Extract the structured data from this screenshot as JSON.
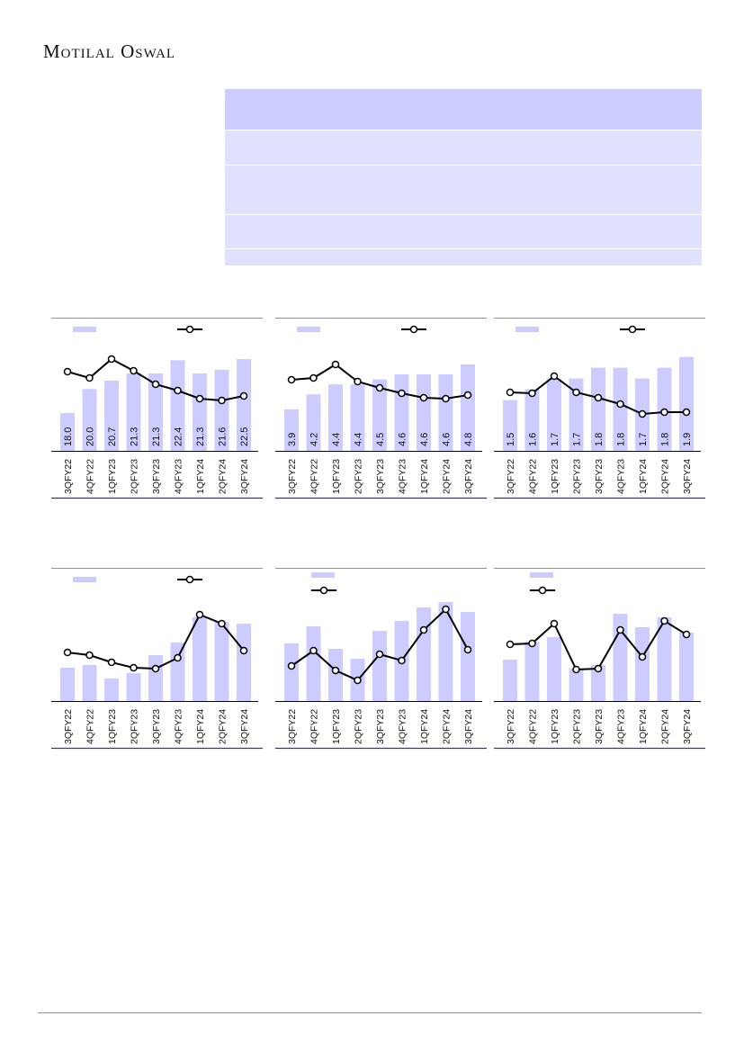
{
  "header": {
    "brand": "Motilal Oswal"
  },
  "colors": {
    "bar": "#ccccff",
    "line": "#000000",
    "rule": "#8a8ad0",
    "table_header": "#ccccff",
    "table_row": "#e0e0ff"
  },
  "chart_data": [
    {
      "type": "bar",
      "categories": [
        "3QFY22",
        "4QFY22",
        "1QFY23",
        "2QFY23",
        "3QFY23",
        "4QFY23",
        "1QFY24",
        "2QFY24",
        "3QFY24"
      ],
      "bar_values": [
        18.0,
        20.0,
        20.7,
        21.3,
        21.3,
        22.4,
        21.3,
        21.6,
        22.5
      ],
      "bar_labels": [
        "18.0",
        "20.0",
        "20.7",
        "21.3",
        "21.3",
        "22.4",
        "21.3",
        "21.6",
        "22.5"
      ],
      "bar_ylim": [
        14.85,
        23.85
      ],
      "line_values": [
        88,
        81,
        102,
        89,
        74,
        67,
        58,
        56,
        61
      ],
      "line_ylim": [
        0,
        120
      ],
      "legend": "top-stacked-row"
    },
    {
      "type": "bar",
      "categories": [
        "3QFY22",
        "4QFY22",
        "1QFY23",
        "2QFY23",
        "3QFY23",
        "4QFY23",
        "1QFY24",
        "2QFY24",
        "3QFY24"
      ],
      "bar_values": [
        3.9,
        4.2,
        4.4,
        4.4,
        4.5,
        4.6,
        4.6,
        4.6,
        4.8
      ],
      "bar_labels": [
        "3.9",
        "4.2",
        "4.4",
        "4.4",
        "4.5",
        "4.6",
        "4.6",
        "4.6",
        "4.8"
      ],
      "bar_ylim": [
        3.07,
        5.23
      ],
      "line_values": [
        79,
        81,
        96,
        77,
        70,
        64,
        59,
        58,
        62
      ],
      "line_ylim": [
        0,
        120
      ],
      "legend": "top-row"
    },
    {
      "type": "bar",
      "categories": [
        "3QFY22",
        "4QFY22",
        "1QFY23",
        "2QFY23",
        "3QFY23",
        "4QFY23",
        "1QFY24",
        "2QFY24",
        "3QFY24"
      ],
      "bar_values": [
        1.5,
        1.6,
        1.7,
        1.7,
        1.8,
        1.8,
        1.7,
        1.8,
        1.9
      ],
      "bar_labels": [
        "1.5",
        "1.6",
        "1.7",
        "1.7",
        "1.8",
        "1.8",
        "1.7",
        "1.8",
        "1.9"
      ],
      "bar_ylim": [
        1.03,
        2.03
      ],
      "line_values": [
        65,
        64,
        83,
        65,
        59,
        52,
        41,
        43,
        43
      ],
      "line_ylim": [
        0,
        120
      ],
      "legend": "top-row"
    },
    {
      "type": "bar",
      "categories": [
        "3QFY22",
        "4QFY22",
        "1QFY23",
        "2QFY23",
        "3QFY23",
        "4QFY23",
        "1QFY24",
        "2QFY24",
        "3QFY24"
      ],
      "bar_values": [
        37,
        40,
        25,
        31,
        51,
        65,
        93,
        88,
        86
      ],
      "bar_ylim": [
        0,
        120
      ],
      "line_values": [
        54,
        51,
        43,
        37,
        36,
        48,
        96,
        86,
        56
      ],
      "line_ylim": [
        0,
        120
      ],
      "legend": "top-row"
    },
    {
      "type": "bar",
      "categories": [
        "3QFY22",
        "4QFY22",
        "1QFY23",
        "2QFY23",
        "3QFY23",
        "4QFY23",
        "1QFY24",
        "2QFY24",
        "3QFY24"
      ],
      "bar_values": [
        64,
        83,
        58,
        47,
        78,
        89,
        104,
        110,
        99
      ],
      "bar_ylim": [
        0,
        120
      ],
      "line_values": [
        39,
        56,
        34,
        23,
        52,
        45,
        79,
        102,
        57
      ],
      "line_ylim": [
        0,
        120
      ],
      "legend": "top-stacked"
    },
    {
      "type": "bar",
      "categories": [
        "3QFY22",
        "4QFY22",
        "1QFY23",
        "2QFY23",
        "3QFY23",
        "4QFY23",
        "1QFY24",
        "2QFY24",
        "3QFY24"
      ],
      "bar_values": [
        46,
        66,
        71,
        36,
        40,
        97,
        82,
        93,
        76
      ],
      "bar_ylim": [
        0,
        120
      ],
      "line_values": [
        63,
        64,
        86,
        35,
        36,
        79,
        49,
        89,
        74
      ],
      "line_ylim": [
        0,
        120
      ],
      "legend": "top-stacked"
    }
  ]
}
